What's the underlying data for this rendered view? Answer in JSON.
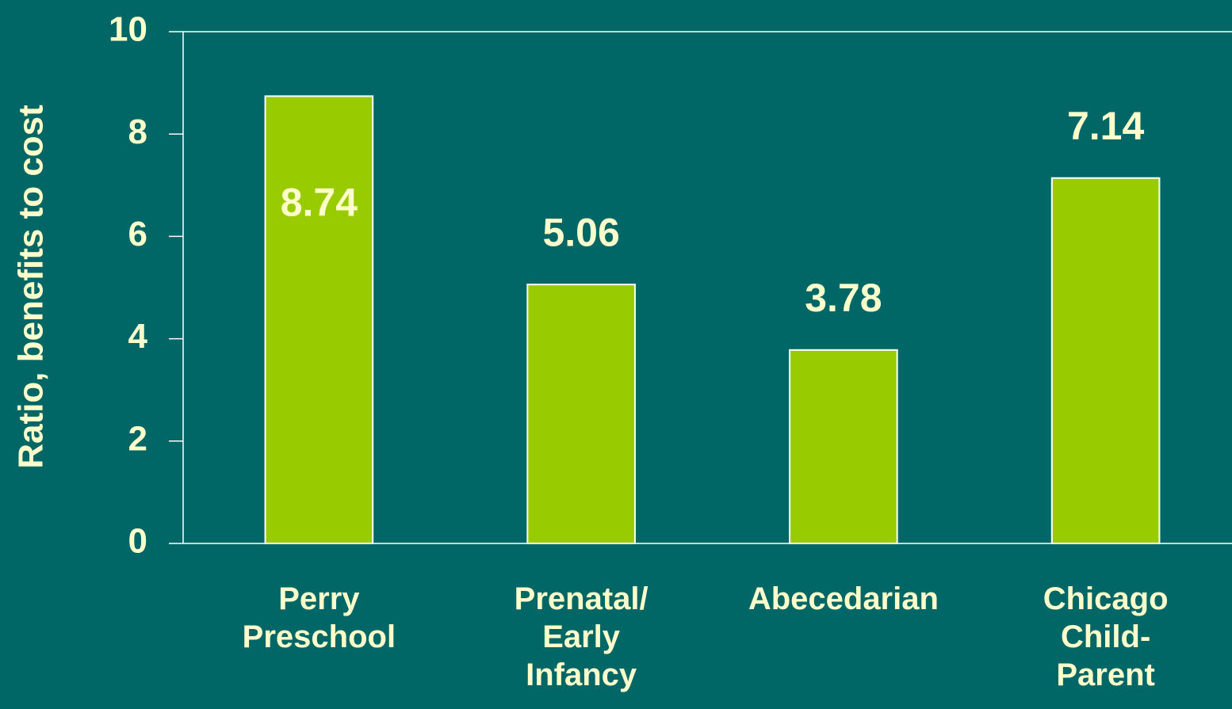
{
  "chart_data": {
    "type": "bar",
    "y_axis_label": "Ratio, benefits to cost",
    "categories": [
      "Perry Preschool",
      "Prenatal/ Early Infancy",
      "Abecedarian",
      "Chicago Child-Parent"
    ],
    "values": [
      8.74,
      5.06,
      3.78,
      7.14
    ],
    "color": "#99cc00",
    "ylim": [
      0,
      10
    ],
    "yticks": [
      0,
      2,
      4,
      6,
      8,
      10
    ]
  }
}
